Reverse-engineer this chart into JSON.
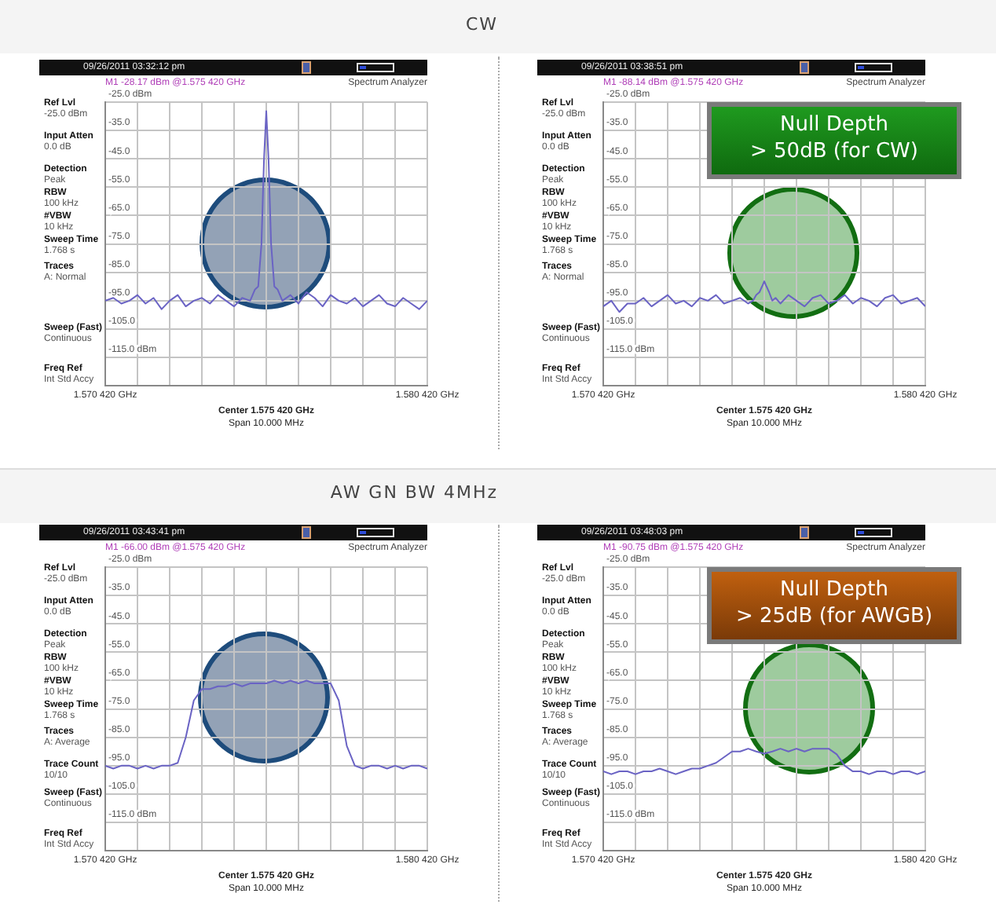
{
  "chart_data": [
    {
      "type": "line",
      "title": "CW",
      "xlabel": "Center 1.575 420 GHz",
      "grid": true,
      "legend": false,
      "marker": "none",
      "line_style": "solid",
      "annotations": [
        "09/26/2011 03:32:12 pm",
        "Spectrum Analyzer",
        "M1 -28.17 dBm @1.575 420 GHz",
        "Span 10.000 MHz",
        "Ref Lvl\n-25.0 dBm",
        "Input Atten\n0.0 dB",
        "Detection\nPeak",
        "RBW\n100 kHz",
        "#VBW\n10 kHz",
        "Sweep Time\n1.768 s",
        "Traces\nA: Normal",
        "Sweep (Fast)\nContinuous",
        "Freq Ref\nInt Std Accy"
      ],
      "xlim": [
        1.57042,
        1.58042
      ],
      "xticks": [
        {
          "value": 1.57042,
          "label": "1.570 420 GHz"
        },
        {
          "value": 1.57142,
          "label": null
        },
        {
          "value": 1.57242,
          "label": null
        },
        {
          "value": 1.57342,
          "label": null
        },
        {
          "value": 1.57442,
          "label": null
        },
        {
          "value": 1.57542,
          "label": null
        },
        {
          "value": 1.57642,
          "label": null
        },
        {
          "value": 1.57742,
          "label": null
        },
        {
          "value": 1.57842,
          "label": null
        },
        {
          "value": 1.57942,
          "label": null
        },
        {
          "value": 1.58042,
          "label": "1.580 420 GHz"
        }
      ],
      "ylim": [
        -125,
        -25
      ],
      "yticks": [
        {
          "value": -125,
          "label": null
        },
        {
          "value": -115,
          "label": "-115.0 dBm"
        },
        {
          "value": -105,
          "label": "-105.0"
        },
        {
          "value": -95,
          "label": "-95.0"
        },
        {
          "value": -85,
          "label": "-85.0"
        },
        {
          "value": -75,
          "label": "-75.0"
        },
        {
          "value": -65,
          "label": "-65.0"
        },
        {
          "value": -55,
          "label": "-55.0"
        },
        {
          "value": -45,
          "label": "-45.0"
        },
        {
          "value": -35,
          "label": "-35.0"
        },
        {
          "value": -25,
          "label": "-25.0 dBm"
        }
      ],
      "series": [
        {
          "color": "#6a63c4",
          "x": [
            1.57042,
            1.57067,
            1.57092,
            1.57117,
            1.57142,
            1.57167,
            1.57192,
            1.57217,
            1.57242,
            1.57267,
            1.57292,
            1.57317,
            1.57342,
            1.57367,
            1.57392,
            1.57417,
            1.57442,
            1.57467,
            1.57492,
            1.57507,
            1.57517,
            1.57527,
            1.57535,
            1.57542,
            1.57549,
            1.57557,
            1.57567,
            1.57577,
            1.57592,
            1.57617,
            1.57642,
            1.57667,
            1.57692,
            1.57717,
            1.57742,
            1.57767,
            1.57792,
            1.57817,
            1.57842,
            1.57867,
            1.57892,
            1.57917,
            1.57942,
            1.57967,
            1.57992,
            1.58017,
            1.58042
          ],
          "values": [
            -95,
            -94,
            -96,
            -95,
            -93,
            -96,
            -94,
            -98,
            -95,
            -93,
            -97,
            -95,
            -94,
            -96,
            -93,
            -95,
            -97,
            -94,
            -95,
            -91,
            -90,
            -75,
            -45,
            -28.17,
            -45,
            -75,
            -90,
            -91,
            -95,
            -93,
            -96,
            -92,
            -94,
            -97,
            -93,
            -95,
            -96,
            -94,
            -97,
            -95,
            -93,
            -96,
            -97,
            -94,
            -96,
            -98,
            -95
          ]
        }
      ]
    },
    {
      "type": "line",
      "subtitle": "Null Depth\n> 50dB (for CW)",
      "xlabel": "Center 1.575 420 GHz",
      "grid": true,
      "legend": false,
      "marker": "none",
      "line_style": "solid",
      "annotations": [
        "09/26/2011 03:38:51 pm",
        "Spectrum Analyzer",
        "M1 -88.14 dBm @1.575 420 GHz",
        "Span 10.000 MHz",
        "Ref Lvl\n-25.0 dBm",
        "Input Atten\n0.0 dB",
        "Detection\nPeak",
        "RBW\n100 kHz",
        "#VBW\n10 kHz",
        "Sweep Time\n1.768 s",
        "Traces\nA: Normal",
        "Sweep (Fast)\nContinuous",
        "Freq Ref\nInt Std Accy"
      ],
      "xlim": [
        1.57042,
        1.58042
      ],
      "xticks": [
        {
          "value": 1.57042,
          "label": "1.570 420 GHz"
        },
        {
          "value": 1.57142,
          "label": null
        },
        {
          "value": 1.57242,
          "label": null
        },
        {
          "value": 1.57342,
          "label": null
        },
        {
          "value": 1.57442,
          "label": null
        },
        {
          "value": 1.57542,
          "label": null
        },
        {
          "value": 1.57642,
          "label": null
        },
        {
          "value": 1.57742,
          "label": null
        },
        {
          "value": 1.57842,
          "label": null
        },
        {
          "value": 1.57942,
          "label": null
        },
        {
          "value": 1.58042,
          "label": "1.580 420 GHz"
        }
      ],
      "ylim": [
        -125,
        -25
      ],
      "yticks": [
        {
          "value": -125,
          "label": null
        },
        {
          "value": -115,
          "label": "-115.0 dBm"
        },
        {
          "value": -105,
          "label": "-105.0"
        },
        {
          "value": -95,
          "label": "-95.0"
        },
        {
          "value": -85,
          "label": "-85.0"
        },
        {
          "value": -75,
          "label": "-75.0"
        },
        {
          "value": -65,
          "label": "-65.0"
        },
        {
          "value": -55,
          "label": "-55.0"
        },
        {
          "value": -45,
          "label": "-45.0"
        },
        {
          "value": -35,
          "label": "-35.0"
        },
        {
          "value": -25,
          "label": "-25.0 dBm"
        }
      ],
      "series": [
        {
          "color": "#6a63c4",
          "x": [
            1.57042,
            1.57067,
            1.57092,
            1.57117,
            1.57142,
            1.57167,
            1.57192,
            1.57217,
            1.57242,
            1.57267,
            1.57292,
            1.57317,
            1.57342,
            1.57367,
            1.57392,
            1.57417,
            1.57442,
            1.57467,
            1.57492,
            1.57507,
            1.57517,
            1.57527,
            1.57535,
            1.57542,
            1.57549,
            1.57557,
            1.57567,
            1.57577,
            1.57592,
            1.57617,
            1.57642,
            1.57667,
            1.57692,
            1.57717,
            1.57742,
            1.57767,
            1.57792,
            1.57817,
            1.57842,
            1.57867,
            1.57892,
            1.57917,
            1.57942,
            1.57967,
            1.57992,
            1.58017,
            1.58042
          ],
          "values": [
            -97,
            -95,
            -99,
            -96,
            -96,
            -94,
            -97,
            -95,
            -93,
            -96,
            -95,
            -97,
            -94,
            -95,
            -93,
            -96,
            -95,
            -94,
            -96,
            -95,
            -93,
            -92,
            -90,
            -88.14,
            -90,
            -92,
            -95,
            -94,
            -96,
            -93,
            -95,
            -97,
            -94,
            -93,
            -96,
            -95,
            -93,
            -96,
            -94,
            -95,
            -97,
            -94,
            -93,
            -96,
            -95,
            -94,
            -97
          ]
        }
      ]
    },
    {
      "type": "line",
      "title": "AW GN BW 4MHz",
      "xlabel": "Center 1.575 420 GHz",
      "grid": true,
      "legend": false,
      "marker": "none",
      "line_style": "solid",
      "annotations": [
        "09/26/2011 03:43:41 pm",
        "Spectrum Analyzer",
        "M1 -66.00 dBm @1.575 420 GHz",
        "Span 10.000 MHz",
        "Ref Lvl\n-25.0 dBm",
        "Input Atten\n0.0 dB",
        "Detection\nPeak",
        "RBW\n100 kHz",
        "#VBW\n10 kHz",
        "Sweep Time\n1.768 s",
        "Traces\nA: Average",
        "Trace Count\n10/10",
        "Sweep (Fast)\nContinuous",
        "Freq Ref\nInt Std Accy"
      ],
      "xlim": [
        1.57042,
        1.58042
      ],
      "xticks": [
        {
          "value": 1.57042,
          "label": "1.570 420 GHz"
        },
        {
          "value": 1.57142,
          "label": null
        },
        {
          "value": 1.57242,
          "label": null
        },
        {
          "value": 1.57342,
          "label": null
        },
        {
          "value": 1.57442,
          "label": null
        },
        {
          "value": 1.57542,
          "label": null
        },
        {
          "value": 1.57642,
          "label": null
        },
        {
          "value": 1.57742,
          "label": null
        },
        {
          "value": 1.57842,
          "label": null
        },
        {
          "value": 1.57942,
          "label": null
        },
        {
          "value": 1.58042,
          "label": "1.580 420 GHz"
        }
      ],
      "ylim": [
        -125,
        -25
      ],
      "yticks": [
        {
          "value": -125,
          "label": null
        },
        {
          "value": -115,
          "label": "-115.0 dBm"
        },
        {
          "value": -105,
          "label": "-105.0"
        },
        {
          "value": -95,
          "label": "-95.0"
        },
        {
          "value": -85,
          "label": "-85.0"
        },
        {
          "value": -75,
          "label": "-75.0"
        },
        {
          "value": -65,
          "label": "-65.0"
        },
        {
          "value": -55,
          "label": "-55.0"
        },
        {
          "value": -45,
          "label": "-45.0"
        },
        {
          "value": -35,
          "label": "-35.0"
        },
        {
          "value": -25,
          "label": "-25.0 dBm"
        }
      ],
      "series": [
        {
          "color": "#6a63c4",
          "x": [
            1.57042,
            1.57067,
            1.57092,
            1.57117,
            1.57142,
            1.57167,
            1.57192,
            1.57217,
            1.57242,
            1.57267,
            1.57292,
            1.57317,
            1.57342,
            1.57367,
            1.57392,
            1.57417,
            1.57442,
            1.57467,
            1.57492,
            1.57517,
            1.57542,
            1.57567,
            1.57592,
            1.57617,
            1.57642,
            1.57667,
            1.57692,
            1.57717,
            1.57742,
            1.57767,
            1.57792,
            1.57817,
            1.57842,
            1.57867,
            1.57892,
            1.57917,
            1.57942,
            1.57967,
            1.57992,
            1.58017,
            1.58042
          ],
          "values": [
            -95,
            -96,
            -95,
            -95,
            -96,
            -95,
            -96,
            -95,
            -95,
            -94,
            -85,
            -72,
            -68,
            -68,
            -67,
            -67,
            -66,
            -67,
            -66,
            -66,
            -66,
            -65,
            -66,
            -65,
            -66,
            -65,
            -66,
            -66,
            -66,
            -72,
            -88,
            -95,
            -96,
            -95,
            -95,
            -96,
            -95,
            -96,
            -95,
            -95,
            -96
          ]
        }
      ]
    },
    {
      "type": "line",
      "subtitle": "Null Depth\n> 25dB (for AWGB)",
      "xlabel": "Center 1.575 420 GHz",
      "grid": true,
      "legend": false,
      "marker": "none",
      "line_style": "solid",
      "annotations": [
        "09/26/2011 03:48:03 pm",
        "Spectrum Analyzer",
        "M1 -90.75 dBm @1.575 420 GHz",
        "Span 10.000 MHz",
        "Ref Lvl\n-25.0 dBm",
        "Input Atten\n0.0 dB",
        "Detection\nPeak",
        "RBW\n100 kHz",
        "#VBW\n10 kHz",
        "Sweep Time\n1.768 s",
        "Traces\nA: Average",
        "Trace Count\n10/10",
        "Sweep (Fast)\nContinuous",
        "Freq Ref\nInt Std Accy"
      ],
      "xlim": [
        1.57042,
        1.58042
      ],
      "xticks": [
        {
          "value": 1.57042,
          "label": "1.570 420 GHz"
        },
        {
          "value": 1.57142,
          "label": null
        },
        {
          "value": 1.57242,
          "label": null
        },
        {
          "value": 1.57342,
          "label": null
        },
        {
          "value": 1.57442,
          "label": null
        },
        {
          "value": 1.57542,
          "label": null
        },
        {
          "value": 1.57642,
          "label": null
        },
        {
          "value": 1.57742,
          "label": null
        },
        {
          "value": 1.57842,
          "label": null
        },
        {
          "value": 1.57942,
          "label": null
        },
        {
          "value": 1.58042,
          "label": "1.580 420 GHz"
        }
      ],
      "ylim": [
        -125,
        -25
      ],
      "yticks": [
        {
          "value": -125,
          "label": null
        },
        {
          "value": -115,
          "label": "-115.0 dBm"
        },
        {
          "value": -105,
          "label": "-105.0"
        },
        {
          "value": -95,
          "label": "-95.0"
        },
        {
          "value": -85,
          "label": "-85.0"
        },
        {
          "value": -75,
          "label": "-75.0"
        },
        {
          "value": -65,
          "label": "-65.0"
        },
        {
          "value": -55,
          "label": "-55.0"
        },
        {
          "value": -45,
          "label": "-45.0"
        },
        {
          "value": -35,
          "label": "-35.0"
        },
        {
          "value": -25,
          "label": "-25.0 dBm"
        }
      ],
      "series": [
        {
          "color": "#6a63c4",
          "x": [
            1.57042,
            1.57067,
            1.57092,
            1.57117,
            1.57142,
            1.57167,
            1.57192,
            1.57217,
            1.57242,
            1.57267,
            1.57292,
            1.57317,
            1.57342,
            1.57367,
            1.57392,
            1.57417,
            1.57442,
            1.57467,
            1.57492,
            1.57517,
            1.57542,
            1.57567,
            1.57592,
            1.57617,
            1.57642,
            1.57667,
            1.57692,
            1.57717,
            1.57742,
            1.57767,
            1.57792,
            1.57817,
            1.57842,
            1.57867,
            1.57892,
            1.57917,
            1.57942,
            1.57967,
            1.57992,
            1.58017,
            1.58042
          ],
          "values": [
            -97,
            -98,
            -97,
            -97,
            -98,
            -97,
            -97,
            -96,
            -97,
            -98,
            -97,
            -96,
            -96,
            -95,
            -94,
            -92,
            -90,
            -90,
            -89,
            -90,
            -90.75,
            -90,
            -89,
            -90,
            -89,
            -90,
            -89,
            -89,
            -89,
            -91,
            -95,
            -97,
            -97,
            -98,
            -97,
            -97,
            -98,
            -97,
            -97,
            -98,
            -97
          ]
        }
      ]
    }
  ]
}
